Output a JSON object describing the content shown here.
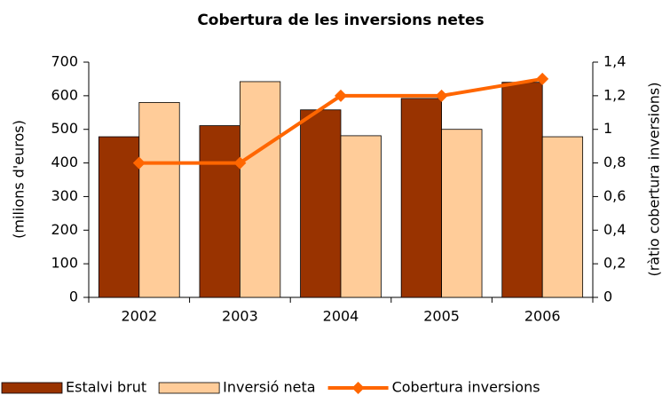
{
  "chart_data": {
    "type": "bar",
    "title": "Cobertura de les inversions netes",
    "ylabel": "(milions d'euros)",
    "y2label": "(ràtio cobertura inversions)",
    "categories": [
      "2002",
      "2003",
      "2004",
      "2005",
      "2006"
    ],
    "series": [
      {
        "name": "Estalvi brut",
        "color": "#993300",
        "values": [
          478,
          511,
          558,
          592,
          640
        ]
      },
      {
        "name": "Inversió neta",
        "color": "#ffcc99",
        "values": [
          580,
          642,
          481,
          500,
          478
        ]
      },
      {
        "name": "Cobertura inversions",
        "color": "#ff6600",
        "type": "line",
        "axis": "y2",
        "values": [
          0.8,
          0.8,
          1.2,
          1.2,
          1.3
        ]
      }
    ],
    "ylim": [
      0,
      700
    ],
    "yticks": [
      0,
      100,
      200,
      300,
      400,
      500,
      600,
      700
    ],
    "y2lim": [
      0,
      1.4
    ],
    "y2ticks": [
      0,
      {
        "value": 0.2,
        "label": "0,2"
      },
      {
        "value": 0.4,
        "label": "0,4"
      },
      {
        "value": 0.6,
        "label": "0,6"
      },
      {
        "value": 0.8,
        "label": "0,8"
      },
      1,
      {
        "value": 1.2,
        "label": "1,2"
      },
      {
        "value": 1.4,
        "label": "1,4"
      }
    ],
    "legend": "bottom"
  }
}
